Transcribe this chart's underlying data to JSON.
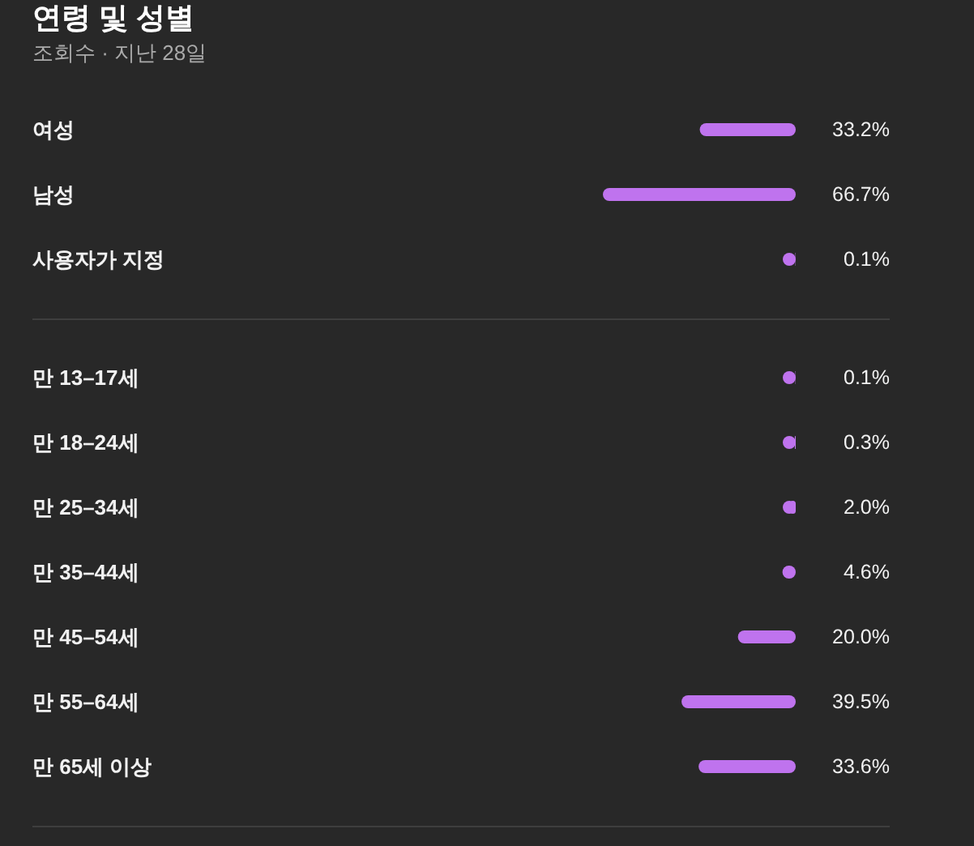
{
  "chart_data": [
    {
      "type": "bar",
      "orientation": "horizontal",
      "title": "연령 및 성별",
      "subtitle": "조회수 · 지난 28일",
      "categories": [
        "여성",
        "남성",
        "사용자가 지정"
      ],
      "values": [
        33.2,
        66.7,
        0.1
      ],
      "value_labels": [
        "33.2%",
        "66.7%",
        "0.1%"
      ],
      "color": "#bf73ee"
    },
    {
      "type": "bar",
      "orientation": "horizontal",
      "categories": [
        "만 13–17세",
        "만 18–24세",
        "만 25–34세",
        "만 35–44세",
        "만 45–54세",
        "만 55–64세",
        "만 65세 이상"
      ],
      "values": [
        0.1,
        0.3,
        2.0,
        4.6,
        20.0,
        39.5,
        33.6
      ],
      "value_labels": [
        "0.1%",
        "0.3%",
        "2.0%",
        "4.6%",
        "20.0%",
        "39.5%",
        "33.6%"
      ],
      "color": "#bf73ee"
    }
  ]
}
